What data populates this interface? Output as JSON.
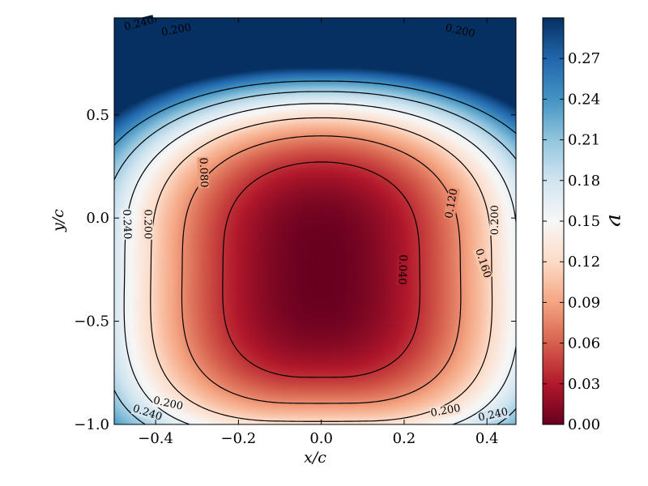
{
  "chart_data": {
    "type": "heatmap",
    "title": "",
    "xlabel": "x/c",
    "ylabel": "y/c",
    "xlim": [
      -0.5,
      0.47
    ],
    "ylim": [
      -1.0,
      0.97
    ],
    "x_ticks": [
      -0.4,
      -0.2,
      0.0,
      0.2,
      0.4
    ],
    "x_tick_labels": [
      "−0.4",
      "−0.2",
      "0.0",
      "0.2",
      "0.4"
    ],
    "y_ticks": [
      -1.0,
      -0.5,
      0.0,
      0.5
    ],
    "y_tick_labels": [
      "−1.0",
      "−0.5",
      "0.0",
      "0.5"
    ],
    "colormap": "RdBu",
    "colorbar": {
      "label": "ν",
      "range": [
        0.0,
        0.3
      ],
      "ticks": [
        0.0,
        0.03,
        0.06,
        0.09,
        0.12,
        0.15,
        0.18,
        0.21,
        0.24,
        0.27
      ],
      "tick_labels": [
        "0.00",
        "0.03",
        "0.06",
        "0.09",
        "0.12",
        "0.15",
        "0.18",
        "0.21",
        "0.24",
        "0.27"
      ],
      "colors": [
        "#67001f",
        "#b2182b",
        "#d6604d",
        "#f4a582",
        "#fddbc7",
        "#f7f7f7",
        "#d1e5f0",
        "#92c5de",
        "#4393c3",
        "#2166ac",
        "#053061"
      ]
    },
    "contour_levels": [
      0.04,
      0.08,
      0.12,
      0.16,
      0.2,
      0.24
    ],
    "contour_labels": [
      {
        "text": "0.240",
        "x": -0.44,
        "y": 0.94,
        "angle": -14
      },
      {
        "text": "0.200",
        "x": -0.35,
        "y": 0.91,
        "angle": -10
      },
      {
        "text": "0.200",
        "x": 0.335,
        "y": 0.905,
        "angle": 12
      },
      {
        "text": "0.080",
        "x": -0.285,
        "y": 0.22,
        "angle": 88
      },
      {
        "text": "0.240",
        "x": -0.47,
        "y": -0.03,
        "angle": 88
      },
      {
        "text": "0.200",
        "x": -0.42,
        "y": -0.03,
        "angle": 90
      },
      {
        "text": "0.120",
        "x": 0.315,
        "y": 0.07,
        "angle": -80
      },
      {
        "text": "0.200",
        "x": 0.42,
        "y": -0.01,
        "angle": -90
      },
      {
        "text": "0.040",
        "x": 0.195,
        "y": -0.25,
        "angle": 92
      },
      {
        "text": "0.160",
        "x": 0.39,
        "y": -0.22,
        "angle": 72
      },
      {
        "text": "0.200",
        "x": -0.37,
        "y": -0.9,
        "angle": 12
      },
      {
        "text": "0.240",
        "x": -0.42,
        "y": -0.945,
        "angle": 18
      },
      {
        "text": "0.200",
        "x": 0.3,
        "y": -0.935,
        "angle": -10
      },
      {
        "text": "0.240",
        "x": 0.415,
        "y": -0.955,
        "angle": -12
      }
    ]
  }
}
